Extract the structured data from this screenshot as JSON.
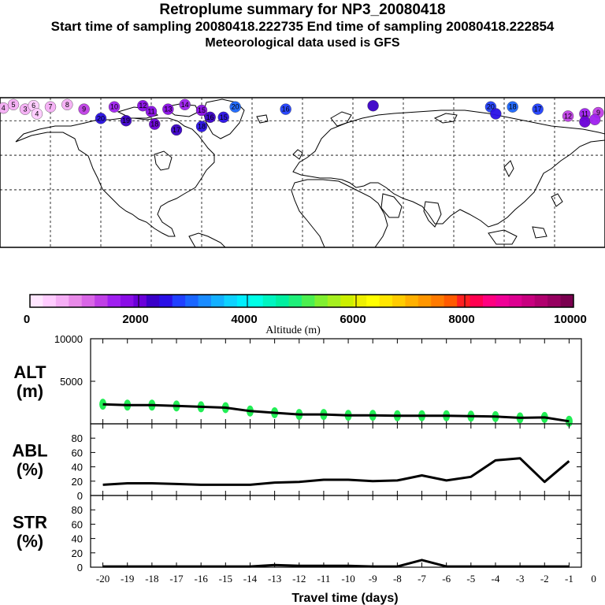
{
  "header": {
    "title": "Retroplume summary for NP3_20080418",
    "sampling": "Start time of sampling 20080418.222735     End time of sampling 20080418.222854",
    "met": "Meteorological data used is GFS"
  },
  "map": {
    "description_label": "",
    "markers": [
      {
        "lon": -178,
        "lat": 71,
        "label": "4",
        "alt": 600
      },
      {
        "lon": -172,
        "lat": 74,
        "label": "5",
        "alt": 500
      },
      {
        "lon": -165,
        "lat": 70,
        "label": "3",
        "alt": 700
      },
      {
        "lon": -160,
        "lat": 73,
        "label": "6",
        "alt": 400
      },
      {
        "lon": -158,
        "lat": 66,
        "label": "4",
        "alt": 300
      },
      {
        "lon": -150,
        "lat": 72,
        "label": "7",
        "alt": 500
      },
      {
        "lon": -140,
        "lat": 74,
        "label": "8",
        "alt": 700
      },
      {
        "lon": -130,
        "lat": 70,
        "label": "9",
        "alt": 1400
      },
      {
        "lon": -112,
        "lat": 72,
        "label": "10",
        "alt": 1500
      },
      {
        "lon": -95,
        "lat": 73,
        "label": "12",
        "alt": 1700
      },
      {
        "lon": -90,
        "lat": 68,
        "label": "11",
        "alt": 1800
      },
      {
        "lon": -80,
        "lat": 70,
        "label": "13",
        "alt": 1900
      },
      {
        "lon": -70,
        "lat": 74,
        "label": "14",
        "alt": 1600
      },
      {
        "lon": -60,
        "lat": 69,
        "label": "15",
        "alt": 1700
      },
      {
        "lon": -55,
        "lat": 63,
        "label": "16",
        "alt": 2300
      },
      {
        "lon": -40,
        "lat": 72,
        "label": "20",
        "alt": 3000
      },
      {
        "lon": -120,
        "lat": 62,
        "label": "20",
        "alt": 2500
      },
      {
        "lon": -105,
        "lat": 60,
        "label": "19",
        "alt": 2300
      },
      {
        "lon": -88,
        "lat": 57,
        "label": "18",
        "alt": 2100
      },
      {
        "lon": -75,
        "lat": 52,
        "label": "17",
        "alt": 2200
      },
      {
        "lon": -60,
        "lat": 55,
        "label": "18",
        "alt": 2400
      },
      {
        "lon": -47,
        "lat": 63,
        "label": "15",
        "alt": 2600
      },
      {
        "lon": -10,
        "lat": 70,
        "label": "16",
        "alt": 2800
      },
      {
        "lon": 42,
        "lat": 73,
        "label": "",
        "alt": 2300
      },
      {
        "lon": 112,
        "lat": 72,
        "label": "20",
        "alt": 2700
      },
      {
        "lon": 125,
        "lat": 72,
        "label": "18",
        "alt": 2900
      },
      {
        "lon": 140,
        "lat": 70,
        "label": "17",
        "alt": 2800
      },
      {
        "lon": 115,
        "lat": 66,
        "label": "",
        "alt": 2600
      },
      {
        "lon": 158,
        "lat": 64,
        "label": "12",
        "alt": 1300
      },
      {
        "lon": 168,
        "lat": 66,
        "label": "11",
        "alt": 1500
      },
      {
        "lon": 176,
        "lat": 67,
        "label": "9",
        "alt": 1200
      },
      {
        "lon": 168,
        "lat": 59,
        "label": "",
        "alt": 2100
      },
      {
        "lon": 174,
        "lat": 61,
        "label": "",
        "alt": 1600
      }
    ]
  },
  "colorbar": {
    "tick_labels": [
      "0",
      "2000",
      "4000",
      "6000",
      "8000",
      "10000"
    ],
    "xlabel": "Altitude (m)",
    "colors": [
      "#ffe6ff",
      "#ffccff",
      "#f5aef5",
      "#e88ae8",
      "#d966e6",
      "#c040e6",
      "#a020f0",
      "#8a0de6",
      "#6a00d9",
      "#3a00c8",
      "#2a10e6",
      "#2040ff",
      "#1a66ff",
      "#1a8cff",
      "#14b0ff",
      "#0fd2ff",
      "#00eeff",
      "#00ffe6",
      "#00f5c0",
      "#00f0a0",
      "#1ff07a",
      "#4cf050",
      "#80f030",
      "#a6f020",
      "#ccf000",
      "#eef000",
      "#ffff00",
      "#ffe600",
      "#ffcc00",
      "#ffb000",
      "#ff9600",
      "#ff7a00",
      "#ff5a00",
      "#ff2020",
      "#ff0050",
      "#ff0080",
      "#f00096",
      "#dd0090",
      "#c8007f",
      "#b0006e",
      "#960060",
      "#7a004f"
    ]
  },
  "chart_data": [
    {
      "type": "line",
      "name": "ALT",
      "ylabel": "ALT",
      "yunit": "(m)",
      "ylim": [
        0,
        10000
      ],
      "yticks": [
        0,
        5000,
        10000
      ],
      "ytick_labels": [
        "",
        "5000",
        "10000"
      ],
      "x": [
        -20,
        -19,
        -18,
        -17,
        -16,
        -15,
        -14,
        -13,
        -12,
        -11,
        -10,
        -9,
        -8,
        -7,
        -6,
        -5,
        -4,
        -3,
        -2,
        -1
      ],
      "values": [
        2300,
        2200,
        2200,
        2100,
        2000,
        1900,
        1500,
        1300,
        1100,
        1100,
        1000,
        1000,
        950,
        950,
        950,
        900,
        850,
        700,
        750,
        300
      ],
      "scatter_color": "#22ee55"
    },
    {
      "type": "line",
      "name": "ABL",
      "ylabel": "ABL",
      "yunit": "(%)",
      "ylim": [
        0,
        100
      ],
      "yticks": [
        0,
        20,
        40,
        60,
        80
      ],
      "ytick_labels": [
        "0",
        "20",
        "40",
        "60",
        "80"
      ],
      "x": [
        -20,
        -19,
        -18,
        -17,
        -16,
        -15,
        -14,
        -13,
        -12,
        -11,
        -10,
        -9,
        -8,
        -7,
        -6,
        -5,
        -4,
        -3,
        -2,
        -1
      ],
      "values": [
        15,
        17,
        17,
        16,
        15,
        15,
        15,
        18,
        19,
        22,
        22,
        20,
        21,
        28,
        21,
        26,
        49,
        52,
        19,
        48
      ]
    },
    {
      "type": "line",
      "name": "STR",
      "ylabel": "STR",
      "yunit": "(%)",
      "ylim": [
        0,
        100
      ],
      "yticks": [
        0,
        20,
        40,
        60,
        80
      ],
      "ytick_labels": [
        "0",
        "20",
        "40",
        "60",
        "80"
      ],
      "x": [
        -20,
        -19,
        -18,
        -17,
        -16,
        -15,
        -14,
        -13,
        -12,
        -11,
        -10,
        -9,
        -8,
        -7,
        -6,
        -5,
        -4,
        -3,
        -2,
        -1
      ],
      "values": [
        1,
        1,
        1,
        1,
        1,
        1,
        1,
        3,
        2,
        2,
        2,
        1,
        1,
        10,
        1,
        1,
        1,
        1,
        1,
        1
      ],
      "xlabel": "Travel time (days)",
      "xticks": [
        -20,
        -19,
        -18,
        -17,
        -16,
        -15,
        -14,
        -13,
        -12,
        -11,
        -10,
        -9,
        -8,
        -7,
        -6,
        -5,
        -4,
        -3,
        -2,
        -1,
        0
      ],
      "xtick_labels": [
        "-20",
        "-19",
        "-18",
        "-17",
        "-16",
        "-15",
        "-14",
        "-13",
        "-12",
        "-11",
        "-10",
        "-9",
        "-8",
        "-7",
        "-6",
        "-5",
        "-4",
        "-3",
        "-2",
        "-1",
        "0"
      ]
    }
  ]
}
